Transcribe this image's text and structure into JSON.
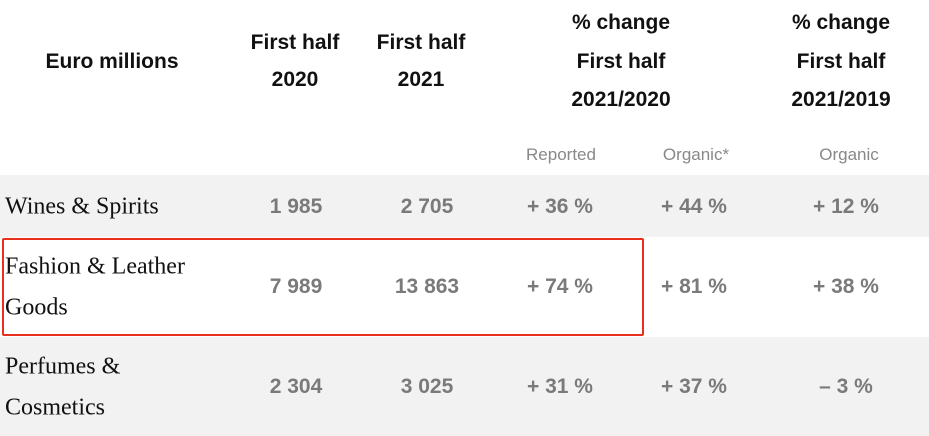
{
  "table": {
    "header": [
      {
        "lines": [
          "Euro millions"
        ]
      },
      {
        "lines": [
          "First half",
          "2020"
        ]
      },
      {
        "lines": [
          "First half",
          "2021"
        ]
      },
      {
        "lines": [
          "% change",
          "First half",
          "2021/2020"
        ]
      },
      {
        "lines": [
          "% change",
          "First half",
          "2021/2019"
        ]
      }
    ],
    "subheaders": [
      "Reported",
      "Organic*",
      "Organic"
    ],
    "rows": [
      {
        "label": [
          "Wines & Spirits"
        ],
        "cells": [
          "1 985",
          "2 705",
          "+ 36 %",
          "+ 44 %",
          "+ 12 %"
        ]
      },
      {
        "label": [
          "Fashion & Leather",
          "Goods"
        ],
        "cells": [
          "7 989",
          "13 863",
          "+ 74 %",
          "+ 81 %",
          "+ 38 %"
        ]
      },
      {
        "label": [
          "Perfumes &",
          "Cosmetics"
        ],
        "cells": [
          "2 304",
          "3 025",
          "+ 31 %",
          "+ 37 %",
          "– 3 %"
        ]
      }
    ]
  }
}
